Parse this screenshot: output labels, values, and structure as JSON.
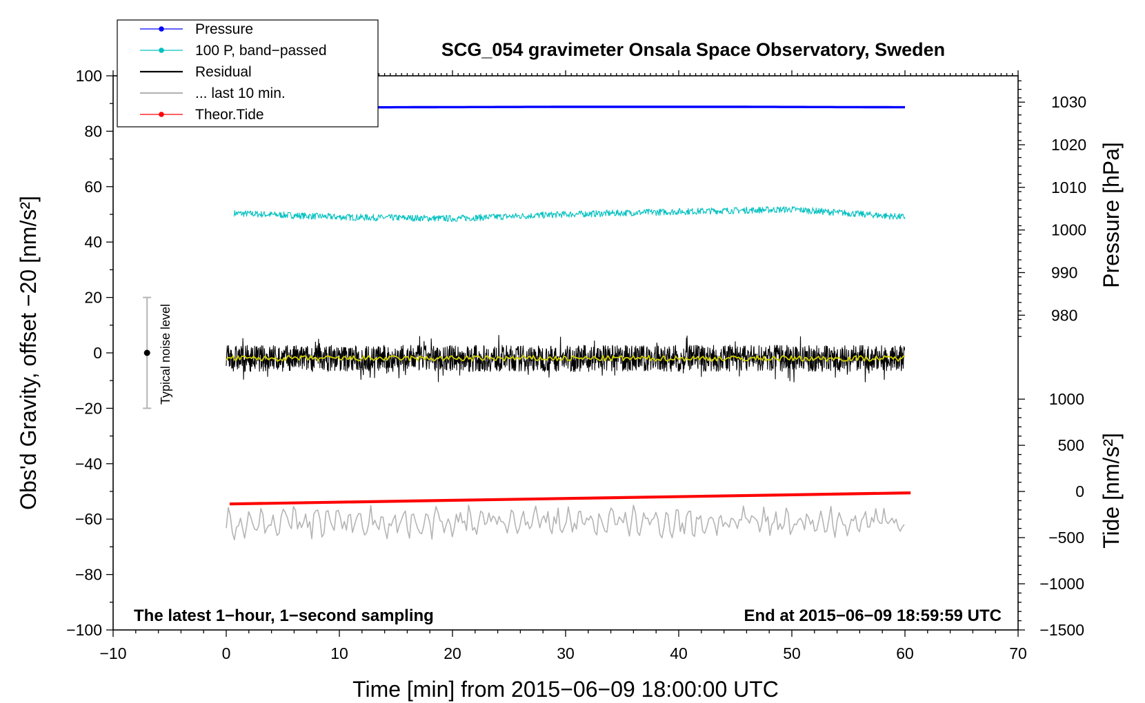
{
  "chart_data": {
    "type": "line",
    "title": "SCG_054 gravimeter Onsala Space Observatory, Sweden",
    "xlabel": "Time [min] from 2015−06−09 18:00:00 UTC",
    "ylabel_left": "Obs'd Gravity, offset −20 [nm/s²]",
    "ylabel_pressure": "Pressure [hPa]",
    "ylabel_tide": "Tide [nm/s²]",
    "xlim": [
      -10,
      70
    ],
    "ylim": [
      -100,
      100
    ],
    "xticks": [
      -10,
      0,
      10,
      20,
      30,
      40,
      50,
      60,
      70
    ],
    "xtick_labels": [
      "−10",
      "0",
      "10",
      "20",
      "30",
      "40",
      "50",
      "60",
      "70"
    ],
    "yticks": [
      -100,
      -80,
      -60,
      -40,
      -20,
      0,
      20,
      40,
      60,
      80,
      100
    ],
    "ytick_labels": [
      "−100",
      "−80",
      "−60",
      "−40",
      "−20",
      "0",
      "20",
      "40",
      "60",
      "80",
      "100"
    ],
    "pressure_axis": {
      "ticks": [
        980,
        990,
        1000,
        1010,
        1020,
        1030
      ],
      "tick_labels": [
        "980",
        "990",
        "1000",
        "1010",
        "1020",
        "1030"
      ],
      "map_value_hpa": [
        980,
        1030
      ],
      "map_left_units": [
        13.6,
        90.5
      ]
    },
    "tide_axis": {
      "ticks": [
        -1500,
        -1000,
        -500,
        0,
        500,
        1000
      ],
      "tick_labels": [
        "−1500",
        "−1000",
        "−500",
        "0",
        "500",
        "1000"
      ],
      "map_value_nms2": [
        -1500,
        1000
      ],
      "map_left_units": [
        -100,
        -16.7
      ]
    },
    "legend": {
      "position": "top-left",
      "entries": [
        {
          "label": "Pressure",
          "color": "#0000ff",
          "marker": true
        },
        {
          "label": "100 P, band−passed",
          "color": "#00c0c0",
          "marker": true
        },
        {
          "label": "Residual",
          "color": "#000000",
          "marker": false
        },
        {
          "label": "... last 10 min.",
          "color": "#b4b4b4",
          "marker": false
        },
        {
          "label": "Theor.Tide",
          "color": "#ff0000",
          "marker": true
        }
      ]
    },
    "series": [
      {
        "name": "Pressure",
        "axis": "pressure",
        "color": "#0000ff",
        "x": [
          0,
          15,
          30,
          45,
          60
        ],
        "values": [
          1028.6,
          1028.8,
          1028.9,
          1028.9,
          1028.8
        ]
      },
      {
        "name": "100 P, band−passed",
        "axis": "left",
        "color": "#00c0c0",
        "x_range": [
          0.7,
          60
        ],
        "mean": 50,
        "amplitude": 2,
        "x": [
          0,
          10,
          20,
          30,
          40,
          50,
          60
        ],
        "values": [
          50.5,
          49,
          48.5,
          50,
          51,
          51.8,
          49
        ]
      },
      {
        "name": "Residual",
        "axis": "left",
        "color": "#000000",
        "x_range": [
          0,
          60
        ],
        "mean": -2,
        "amplitude": 5
      },
      {
        "name": "Residual smoothed",
        "axis": "left",
        "color": "#d2d200",
        "x_range": [
          0,
          60
        ],
        "mean": -2,
        "amplitude": 1
      },
      {
        "name": "... last 10 min.",
        "axis": "left",
        "color": "#b4b4b4",
        "x_range": [
          0,
          60
        ],
        "mean": -61,
        "amplitude": 5
      },
      {
        "name": "Theor.Tide",
        "axis": "tide",
        "color": "#ff0000",
        "x": [
          0.3,
          60.5
        ],
        "values": [
          -135,
          -15
        ]
      }
    ],
    "noise_bar": {
      "x": -7,
      "center": 0,
      "low": -20,
      "high": 20,
      "label": "Typical noise level"
    },
    "annotations": {
      "left": "The latest 1−hour, 1−second sampling",
      "right": "End at 2015−06−09 18:59:59 UTC"
    },
    "grid": false
  }
}
